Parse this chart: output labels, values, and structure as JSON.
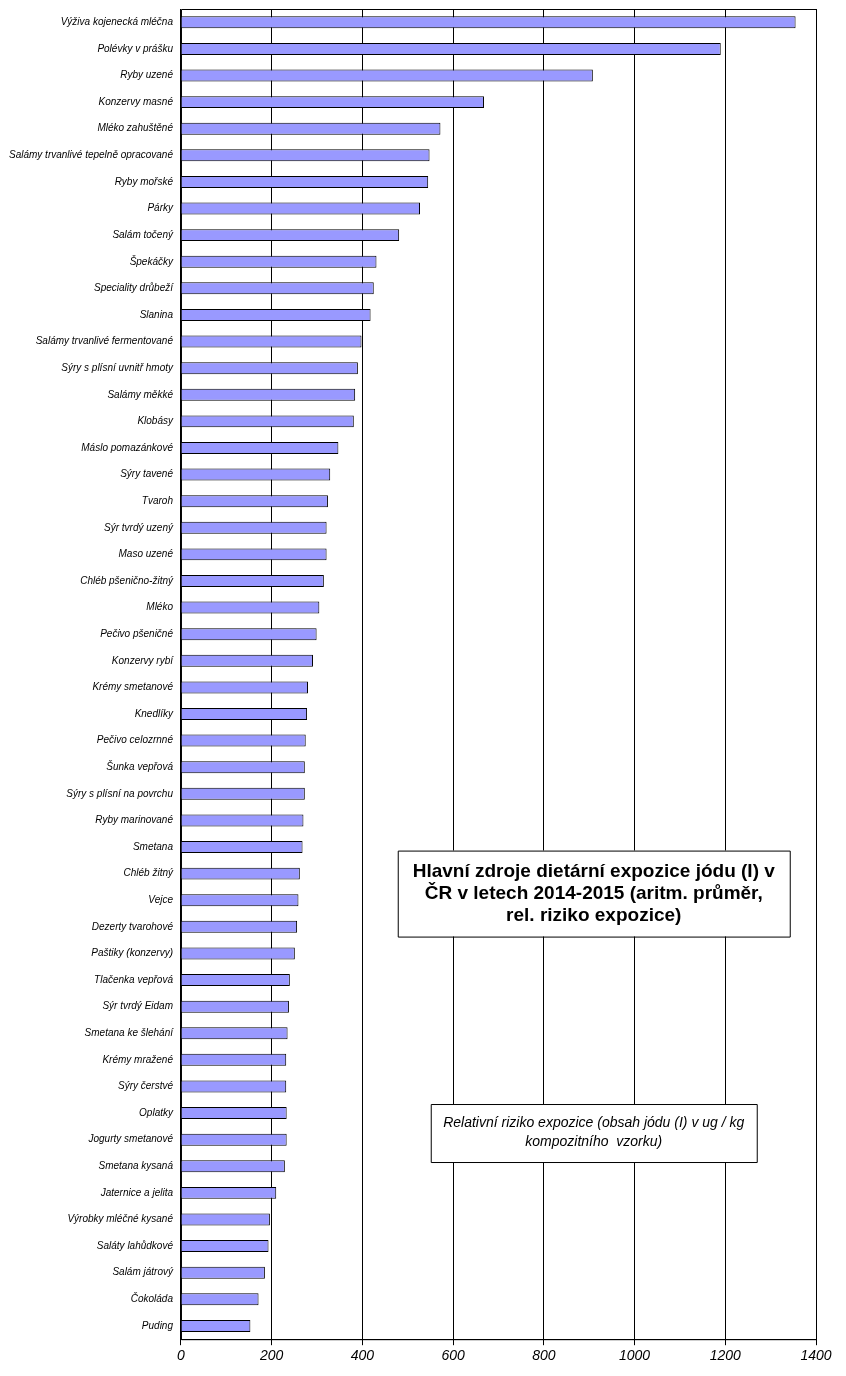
{
  "chart_data": {
    "type": "bar",
    "orientation": "horizontal",
    "title": "Hlavní zdroje dietární expozice jódu (I) v ČR v letech 2014-2015 (aritm. průměr, rel. riziko expozice)",
    "annotations": [
      "Relativní riziko expozice (obsah jódu (I) v ug / kg kompozitního  vzorku)"
    ],
    "categories": [
      "Výživa kojenecká mléčna",
      "Polévky v prášku",
      "Ryby uzené",
      "Konzervy masné",
      "Mléko zahuštěné",
      "Salámy trvanlivé tepelně opracované",
      "Ryby mořské",
      "Párky",
      "Salám točený",
      "Špekáčky",
      "Speciality drůbeží",
      "Slanina",
      "Salámy trvanlivé fermentované",
      "Sýry s plísní uvnitř hmoty",
      "Salámy měkké",
      "Klobásy",
      "Máslo pomazánkové",
      "Sýry tavené",
      "Tvaroh",
      "Sýr tvrdý uzený",
      "Maso uzené",
      "Chléb pšenično-žitný",
      "Mléko",
      "Pečivo pšeničné",
      "Konzervy rybí",
      "Krémy smetanové",
      "Knedlíky",
      "Pečivo celozrnné",
      "Šunka vepřová",
      "Sýry s plísní na povrchu",
      "Ryby marinované",
      "Smetana",
      "Chléb žitný",
      "Vejce",
      "Dezerty tvarohové",
      "Paštiky (konzervy)",
      "Tlačenka vepřová",
      "Sýr tvrdý Eidam",
      "Smetana ke šlehání",
      "Krémy mražené",
      "Sýry čerstvé",
      "Oplatky",
      "Jogurty smetanové",
      "Smetana kysaná",
      "Jaternice a jelita",
      "Výrobky mléčné kysané",
      "Saláty lahůdkové",
      "Salám játrový",
      "Čokoláda",
      "Puding"
    ],
    "values": [
      1355,
      1190,
      908,
      668,
      572,
      548,
      545,
      527,
      481,
      431,
      425,
      418,
      398,
      390,
      384,
      381,
      347,
      329,
      324,
      321,
      321,
      315,
      305,
      299,
      291,
      280,
      278,
      275,
      273,
      273,
      270,
      268,
      262,
      259,
      256,
      251,
      240,
      238,
      235,
      232,
      232,
      233,
      233,
      229,
      210,
      196,
      193,
      185,
      171,
      153
    ],
    "color": "#9999ff",
    "xlim": [
      0,
      1400
    ],
    "xticks": [
      0,
      200,
      400,
      600,
      800,
      1000,
      1200,
      1400
    ],
    "grid": "x"
  }
}
